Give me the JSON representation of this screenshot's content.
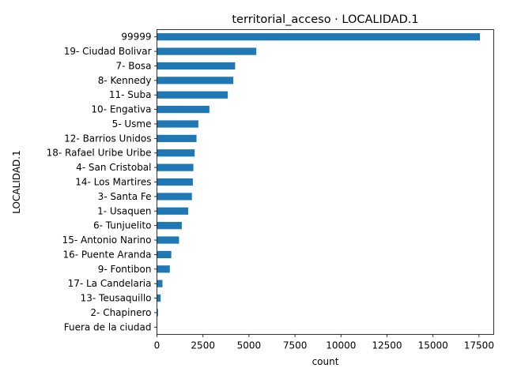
{
  "chart_data": {
    "type": "bar",
    "orientation": "horizontal",
    "title": "territorial_acceso · LOCALIDAD.1",
    "xlabel": "count",
    "ylabel": "LOCALIDAD.1",
    "xlim": [
      0,
      18300
    ],
    "xticks": [
      0,
      2500,
      5000,
      7500,
      10000,
      12500,
      15000,
      17500
    ],
    "grid": false,
    "bar_color": "#1f77b4",
    "categories": [
      "99999",
      "19- Ciudad Bolivar",
      "7- Bosa",
      "8- Kennedy",
      "11- Suba",
      "10- Engativa",
      "5- Usme",
      "12- Barrios Unidos",
      "18- Rafael Uribe Uribe",
      "4- San Cristobal",
      "14- Los Martires",
      "3- Santa Fe",
      "1- Usaquen",
      "6- Tunjuelito",
      "15- Antonio Narino",
      "16- Puente Aranda",
      "9- Fontibon",
      "17- La Candelaria",
      "13- Teusaquillo",
      "2- Chapinero",
      "Fuera de la ciudad"
    ],
    "values": [
      17550,
      5400,
      4250,
      4150,
      3850,
      2850,
      2250,
      2150,
      2050,
      1980,
      1950,
      1900,
      1700,
      1350,
      1200,
      780,
      700,
      300,
      200,
      60,
      15
    ]
  }
}
